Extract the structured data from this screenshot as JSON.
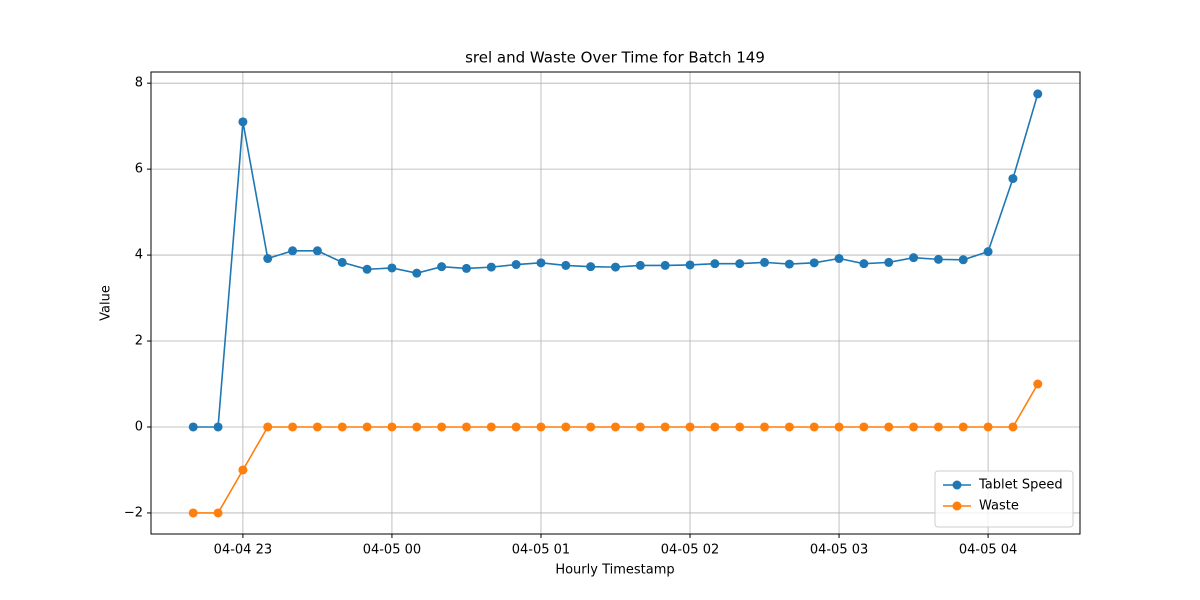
{
  "chart_data": {
    "type": "line",
    "title": "srel and Waste Over Time for Batch 149",
    "xlabel": "Hourly Timestamp",
    "ylabel": "Value",
    "x": [
      "04-04 22:40",
      "04-04 22:50",
      "04-04 23:00",
      "04-04 23:10",
      "04-04 23:20",
      "04-04 23:30",
      "04-04 23:40",
      "04-04 23:50",
      "04-05 00:00",
      "04-05 00:10",
      "04-05 00:20",
      "04-05 00:30",
      "04-05 00:40",
      "04-05 00:50",
      "04-05 01:00",
      "04-05 01:10",
      "04-05 01:20",
      "04-05 01:30",
      "04-05 01:40",
      "04-05 01:50",
      "04-05 02:00",
      "04-05 02:10",
      "04-05 02:20",
      "04-05 02:30",
      "04-05 02:40",
      "04-05 02:50",
      "04-05 03:00",
      "04-05 03:10",
      "04-05 03:20",
      "04-05 03:30",
      "04-05 03:40",
      "04-05 03:50",
      "04-05 04:00",
      "04-05 04:10",
      "04-05 04:20"
    ],
    "series": [
      {
        "name": "Tablet Speed",
        "color": "#1f77b4",
        "values": [
          0,
          0,
          7.1,
          3.92,
          4.1,
          4.1,
          3.83,
          3.67,
          3.7,
          3.58,
          3.73,
          3.69,
          3.72,
          3.78,
          3.82,
          3.76,
          3.73,
          3.72,
          3.76,
          3.76,
          3.77,
          3.8,
          3.8,
          3.83,
          3.79,
          3.82,
          3.92,
          3.8,
          3.83,
          3.94,
          3.9,
          3.89,
          4.08,
          5.78,
          7.75
        ]
      },
      {
        "name": "Waste",
        "color": "#ff7f0e",
        "values": [
          -2,
          -2,
          -1,
          0,
          0,
          0,
          0,
          0,
          0,
          0,
          0,
          0,
          0,
          0,
          0,
          0,
          0,
          0,
          0,
          0,
          0,
          0,
          0,
          0,
          0,
          0,
          0,
          0,
          0,
          0,
          0,
          0,
          0,
          0,
          1
        ]
      }
    ],
    "xlim": [
      "04-04 22:23",
      "04-05 04:37"
    ],
    "xticks": [
      {
        "value": "04-04 23:00",
        "label": "04-04 23"
      },
      {
        "value": "04-05 00:00",
        "label": "04-05 00"
      },
      {
        "value": "04-05 01:00",
        "label": "04-05 01"
      },
      {
        "value": "04-05 02:00",
        "label": "04-05 02"
      },
      {
        "value": "04-05 03:00",
        "label": "04-05 03"
      },
      {
        "value": "04-05 04:00",
        "label": "04-05 04"
      }
    ],
    "ylim": [
      -2.49,
      8.26
    ],
    "yticks": [
      {
        "value": -2,
        "label": "−2"
      },
      0,
      2,
      4,
      6,
      8
    ],
    "grid": true,
    "legend": "lower right"
  }
}
